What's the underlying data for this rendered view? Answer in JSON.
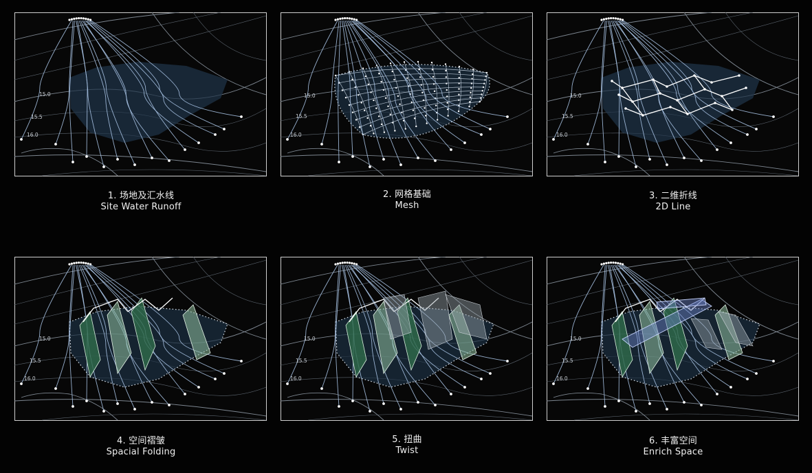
{
  "panels": [
    {
      "id": "site-water-runoff",
      "caption_cn": "1. 场地及汇水线",
      "caption_en": "Site Water Runoff",
      "elevations": [
        "15.0",
        "15.5",
        "16.0"
      ]
    },
    {
      "id": "mesh",
      "caption_cn": "2. 网格基础",
      "caption_en": "Mesh",
      "elevations": [
        "15.0",
        "15.5",
        "16.0"
      ]
    },
    {
      "id": "2d-line",
      "caption_cn": "3. 二维折线",
      "caption_en": "2D Line",
      "elevations": [
        "15.0",
        "15.5",
        "16.0"
      ]
    },
    {
      "id": "spacial-folding",
      "caption_cn": "4. 空间褶皱",
      "caption_en": "Spacial Folding",
      "elevations": [
        "15.0",
        "15.5",
        "16.0"
      ]
    },
    {
      "id": "twist",
      "caption_cn": "5. 扭曲",
      "caption_en": "Twist",
      "elevations": [
        "15.0",
        "15.5",
        "16.0"
      ]
    },
    {
      "id": "enrich-space",
      "caption_cn": "6. 丰富空间",
      "caption_en": "Enrich Space",
      "elevations": [
        "15.0",
        "15.5",
        "16.0"
      ]
    }
  ]
}
